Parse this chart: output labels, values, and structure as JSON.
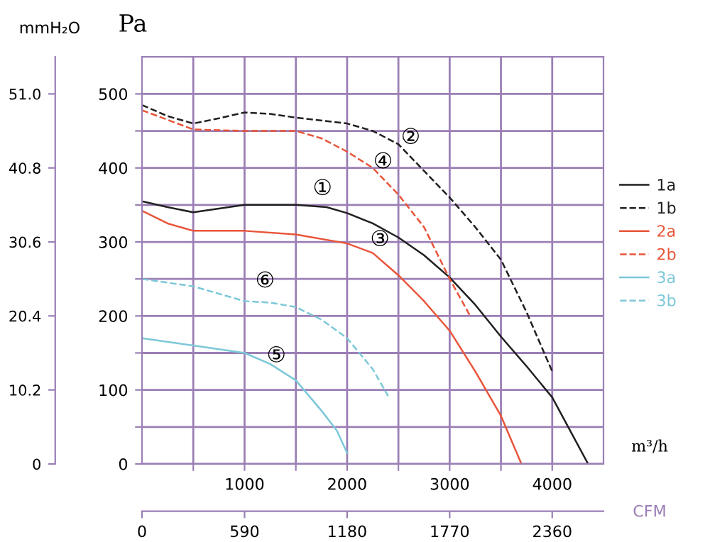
{
  "chart_data": {
    "type": "line",
    "xlabel": "m³/h",
    "ylabel": "Pa",
    "y2label": "mmH₂O",
    "x2label": "CFM",
    "xlim": [
      0,
      4500
    ],
    "xticks": [
      {
        "value": 500,
        "label": null
      },
      1000,
      {
        "value": 1500,
        "label": null
      },
      2000,
      {
        "value": 2500,
        "label": null
      },
      3000,
      {
        "value": 3500,
        "label": null
      },
      4000
    ],
    "ylim": [
      0,
      550
    ],
    "yticks": [
      0,
      {
        "value": 50,
        "label": null
      },
      100,
      {
        "value": 150,
        "label": null
      },
      200,
      {
        "value": 250,
        "label": null
      },
      300,
      {
        "value": 350,
        "label": null
      },
      400,
      {
        "value": 450,
        "label": null
      },
      500
    ],
    "y2lim": [
      0,
      56.1
    ],
    "y2ticks": [
      0,
      10.2,
      20.4,
      30.6,
      40.8,
      {
        "value": 51,
        "label": "51.0"
      }
    ],
    "x2lim": [
      0,
      2655
    ],
    "x2ticks": [
      0,
      590,
      1180,
      1770,
      2360
    ],
    "grid": true,
    "legend": "right",
    "marker": "none",
    "series": [
      {
        "name": "1a",
        "color": "#202020",
        "line_style": "solid",
        "x": [
          0,
          250,
          500,
          750,
          1000,
          1500,
          1800,
          2000,
          2250,
          2500,
          2750,
          3000,
          3250,
          3500,
          3750,
          4000,
          4350
        ],
        "values": [
          355,
          347,
          340,
          345,
          350,
          350,
          347,
          339,
          325,
          306,
          282,
          252,
          215,
          172,
          132,
          90,
          0
        ]
      },
      {
        "name": "1b",
        "color": "#202020",
        "line_style": "dashed",
        "x": [
          0,
          250,
          500,
          750,
          1000,
          1250,
          1500,
          2000,
          2250,
          2500,
          2750,
          3000,
          3250,
          3500,
          3750,
          4000
        ],
        "values": [
          485,
          470,
          460,
          467,
          475,
          473,
          468,
          460,
          450,
          432,
          396,
          360,
          320,
          276,
          205,
          125
        ]
      },
      {
        "name": "2a",
        "color": "#e8553a",
        "line_style": "solid",
        "x": [
          0,
          250,
          500,
          1000,
          1500,
          2000,
          2250,
          2500,
          2750,
          3000,
          3250,
          3500,
          3700
        ],
        "values": [
          342,
          325,
          315,
          315,
          310,
          298,
          285,
          255,
          220,
          180,
          125,
          65,
          0
        ]
      },
      {
        "name": "2b",
        "color": "#e8553a",
        "line_style": "dashed",
        "x": [
          0,
          250,
          500,
          1000,
          1500,
          1750,
          2000,
          2250,
          2500,
          2750,
          3000,
          3200
        ],
        "values": [
          478,
          465,
          452,
          450,
          450,
          440,
          422,
          400,
          364,
          320,
          250,
          200
        ]
      },
      {
        "name": "3a",
        "color": "#7cc8d8",
        "line_style": "solid",
        "x": [
          0,
          500,
          1000,
          1250,
          1500,
          1750,
          1900,
          2000
        ],
        "values": [
          170,
          160,
          150,
          135,
          113,
          72,
          45,
          15
        ]
      },
      {
        "name": "3b",
        "color": "#7cc8d8",
        "line_style": "dashed",
        "x": [
          0,
          500,
          1000,
          1250,
          1500,
          1750,
          2000,
          2250,
          2400
        ],
        "values": [
          250,
          240,
          220,
          218,
          212,
          195,
          170,
          128,
          92
        ]
      }
    ],
    "annotations": [
      {
        "text": "①",
        "x": 1760,
        "y": 345
      },
      {
        "text": "②",
        "x": 2620,
        "y": 414
      },
      {
        "text": "③",
        "x": 2320,
        "y": 276
      },
      {
        "text": "④",
        "x": 2350,
        "y": 381
      },
      {
        "text": "⑤",
        "x": 1310,
        "y": 119
      },
      {
        "text": "⑥",
        "x": 1200,
        "y": 220
      }
    ]
  }
}
